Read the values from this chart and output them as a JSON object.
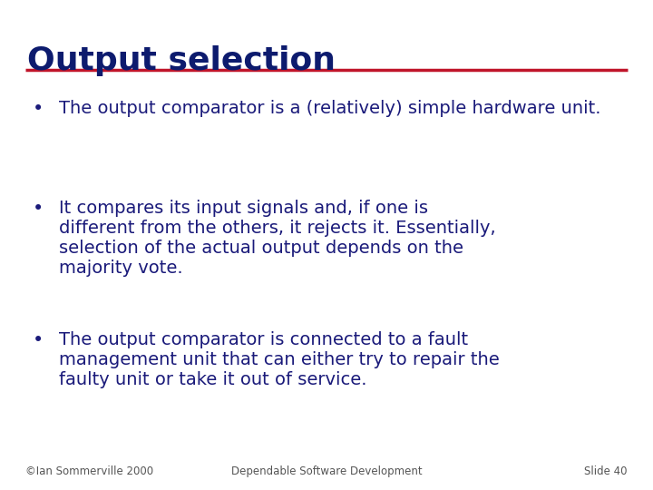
{
  "title": "Output selection",
  "title_color": "#0d1b6e",
  "title_fontsize": 26,
  "line_color": "#c0152a",
  "line_lw": 2.5,
  "bullet_color": "#1a1a7a",
  "text_color": "#1a1a7a",
  "text_fontsize": 14.0,
  "bullets": [
    {
      "lines": [
        "The output comparator is a (relatively) simple hardware unit."
      ]
    },
    {
      "lines": [
        "It compares its input signals and, if one is",
        "different from the others, it rejects it. Essentially,",
        "selection of the actual output depends on the",
        "majority vote."
      ]
    },
    {
      "lines": [
        "The output comparator is connected to a fault",
        "management unit that can either try to repair the",
        "faulty unit or take it out of service."
      ]
    }
  ],
  "footer_left": "©Ian Sommerville 2000",
  "footer_center": "Dependable Software Development",
  "footer_right": "Slide 40",
  "footer_fontsize": 8.5,
  "footer_color": "#555555",
  "bg_color": "#ffffff"
}
